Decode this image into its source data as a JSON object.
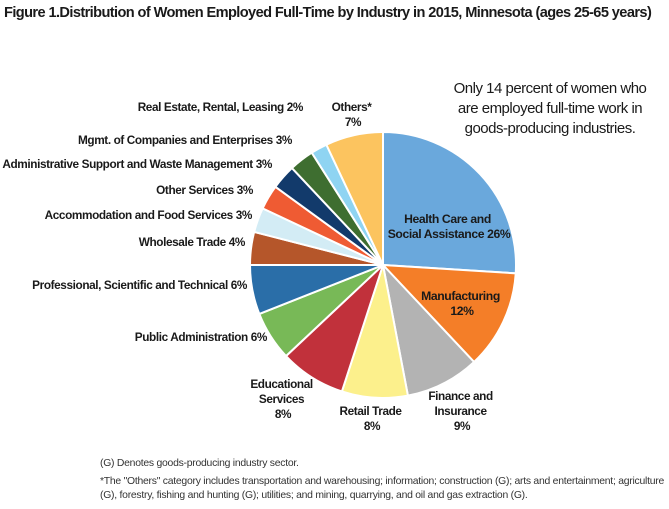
{
  "chart_data": {
    "type": "pie",
    "title": "Figure 1.Distribution of Women Employed Full-Time by Industry in 2015, Minnesota (ages 25-65 years)",
    "slices": [
      {
        "label": "Health Care and Social Assistance",
        "value": 26,
        "display": "26%",
        "color": "#6aa8dc"
      },
      {
        "label": "Manufacturing",
        "value": 12,
        "display": "12%",
        "color": "#f47e28"
      },
      {
        "label": "Finance and Insurance",
        "value": 9,
        "display": "9%",
        "color": "#b3b3b3"
      },
      {
        "label": "Retail Trade",
        "value": 8,
        "display": "8%",
        "color": "#fcf08c"
      },
      {
        "label": "Educational Services",
        "value": 8,
        "display": "8%",
        "color": "#c1313b"
      },
      {
        "label": "Public Administration",
        "value": 6,
        "display": "6%",
        "color": "#78b957"
      },
      {
        "label": "Professional, Scientific and Technical",
        "value": 6,
        "display": "6%",
        "color": "#2a6ea8"
      },
      {
        "label": "Wholesale Trade",
        "value": 4,
        "display": "4%",
        "color": "#b5562a"
      },
      {
        "label": "Accommodation and Food Services",
        "value": 3,
        "display": "3%",
        "color": "#d3ecf5"
      },
      {
        "label": "Other Services",
        "value": 3,
        "display": "3%",
        "color": "#ef5b33"
      },
      {
        "label": "Administrative Support and Waste Management",
        "value": 3,
        "display": "3%",
        "color": "#123a6b"
      },
      {
        "label": "Mgmt. of Companies and Enterprises",
        "value": 3,
        "display": "3%",
        "color": "#3e6e30"
      },
      {
        "label": "Real Estate, Rental, Leasing",
        "value": 2,
        "display": "2%",
        "color": "#8fd4f2"
      },
      {
        "label": "Others*",
        "value": 7,
        "display": "7%",
        "color": "#fcc45f"
      }
    ],
    "callout": "Only 14 percent of women who are employed full-time work in goods-producing industries."
  },
  "footnotes": {
    "goods": "(G) Denotes goods-producing industry sector.",
    "others": "*The \"Others\" category includes transportation and warehousing; information; construction (G); arts and entertainment; agriculture (G), forestry, fishing and hunting (G); utilities; and mining, quarrying, and oil and gas extraction (G)."
  }
}
